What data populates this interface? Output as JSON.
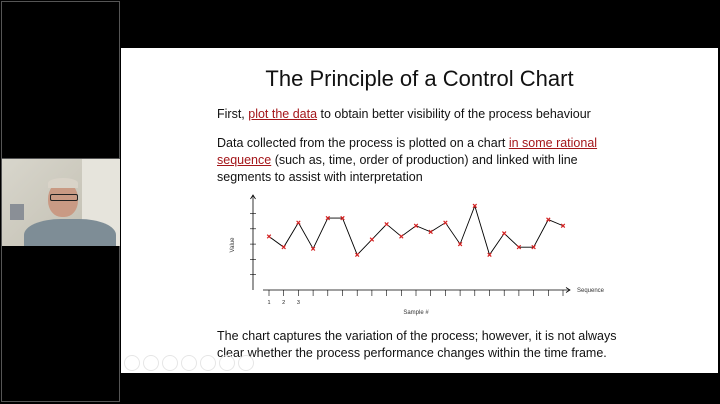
{
  "slide": {
    "title": "The Principle of a Control Chart",
    "para1": {
      "pre": "First, ",
      "link": "plot the data",
      "post": " to obtain better visibility of the process behaviour"
    },
    "para2": {
      "pre": "Data collected from the process is plotted on a chart ",
      "link": "in some rational sequence",
      "post": " (such as, time, order of production) and linked with line segments to assist with interpretation"
    },
    "para3": "The chart captures the variation of the process; however, it is not always clear whether the process performance changes within the time frame.",
    "link_color": "#a4161a"
  },
  "chart_data": {
    "type": "line",
    "xlabel": "Sample #",
    "ylabel": "Value",
    "x_axis_end_label": "Sequence",
    "x_tick_labels": [
      "1",
      "2",
      "3"
    ],
    "y": [
      3.5,
      2.8,
      4.4,
      2.7,
      4.7,
      4.7,
      2.3,
      3.3,
      4.3,
      3.5,
      4.2,
      3.8,
      4.4,
      3.0,
      5.5,
      2.3,
      3.7,
      2.8,
      2.8,
      4.6,
      4.2
    ],
    "ylim": [
      0,
      6
    ],
    "y_ticks": 6,
    "marker": "x",
    "marker_color": "#d42020",
    "line_color": "#000000",
    "grid": false
  }
}
